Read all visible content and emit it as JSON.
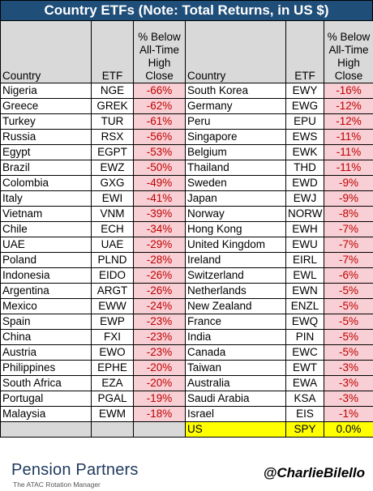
{
  "title": "Country ETFs (Note: Total Returns, in US $)",
  "headers": {
    "country": "Country",
    "etf": "ETF",
    "pct": [
      "% Below",
      "All-Time",
      "High",
      "Close"
    ]
  },
  "rows": [
    [
      [
        "Nigeria",
        "NGE",
        "-66%"
      ],
      [
        "South Korea",
        "EWY",
        "-16%"
      ]
    ],
    [
      [
        "Greece",
        "GREK",
        "-62%"
      ],
      [
        "Germany",
        "EWG",
        "-12%"
      ]
    ],
    [
      [
        "Turkey",
        "TUR",
        "-61%"
      ],
      [
        "Peru",
        "EPU",
        "-12%"
      ]
    ],
    [
      [
        "Russia",
        "RSX",
        "-56%"
      ],
      [
        "Singapore",
        "EWS",
        "-11%"
      ]
    ],
    [
      [
        "Egypt",
        "EGPT",
        "-53%"
      ],
      [
        "Belgium",
        "EWK",
        "-11%"
      ]
    ],
    [
      [
        "Brazil",
        "EWZ",
        "-50%"
      ],
      [
        "Thailand",
        "THD",
        "-11%"
      ]
    ],
    [
      [
        "Colombia",
        "GXG",
        "-49%"
      ],
      [
        "Sweden",
        "EWD",
        "-9%"
      ]
    ],
    [
      [
        "Italy",
        "EWI",
        "-41%"
      ],
      [
        "Japan",
        "EWJ",
        "-9%"
      ]
    ],
    [
      [
        "Vietnam",
        "VNM",
        "-39%"
      ],
      [
        "Norway",
        "NORW",
        "-8%"
      ]
    ],
    [
      [
        "Chile",
        "ECH",
        "-34%"
      ],
      [
        "Hong Kong",
        "EWH",
        "-7%"
      ]
    ],
    [
      [
        "UAE",
        "UAE",
        "-29%"
      ],
      [
        "United Kingdom",
        "EWU",
        "-7%"
      ]
    ],
    [
      [
        "Poland",
        "PLND",
        "-28%"
      ],
      [
        "Ireland",
        "EIRL",
        "-7%"
      ]
    ],
    [
      [
        "Indonesia",
        "EIDO",
        "-26%"
      ],
      [
        "Switzerland",
        "EWL",
        "-6%"
      ]
    ],
    [
      [
        "Argentina",
        "ARGT",
        "-26%"
      ],
      [
        "Netherlands",
        "EWN",
        "-5%"
      ]
    ],
    [
      [
        "Mexico",
        "EWW",
        "-24%"
      ],
      [
        "New Zealand",
        "ENZL",
        "-5%"
      ]
    ],
    [
      [
        "Spain",
        "EWP",
        "-23%"
      ],
      [
        "France",
        "EWQ",
        "-5%"
      ]
    ],
    [
      [
        "China",
        "FXI",
        "-23%"
      ],
      [
        "India",
        "PIN",
        "-5%"
      ]
    ],
    [
      [
        "Austria",
        "EWO",
        "-23%"
      ],
      [
        "Canada",
        "EWC",
        "-5%"
      ]
    ],
    [
      [
        "Philippines",
        "EPHE",
        "-20%"
      ],
      [
        "Taiwan",
        "EWT",
        "-3%"
      ]
    ],
    [
      [
        "South Africa",
        "EZA",
        "-20%"
      ],
      [
        "Australia",
        "EWA",
        "-3%"
      ]
    ],
    [
      [
        "Portugal",
        "PGAL",
        "-19%"
      ],
      [
        "Saudi Arabia",
        "KSA",
        "-3%"
      ]
    ],
    [
      [
        "Malaysia",
        "EWM",
        "-18%"
      ],
      [
        "Israel",
        "EIS",
        "-1%"
      ]
    ]
  ],
  "us_row": [
    "US",
    "SPY",
    "0.0%"
  ],
  "footer": {
    "logo_text": "Pension Partners",
    "tagline": "The ATAC Rotation Manager",
    "handle": "@CharlieBilello"
  },
  "colors": {
    "title_bg": "#1f4e79",
    "header_bg": "#d9d9d9",
    "negative_fill": "#f7cfd4",
    "negative_text": "#c00000",
    "highlight": "#ffff00"
  }
}
